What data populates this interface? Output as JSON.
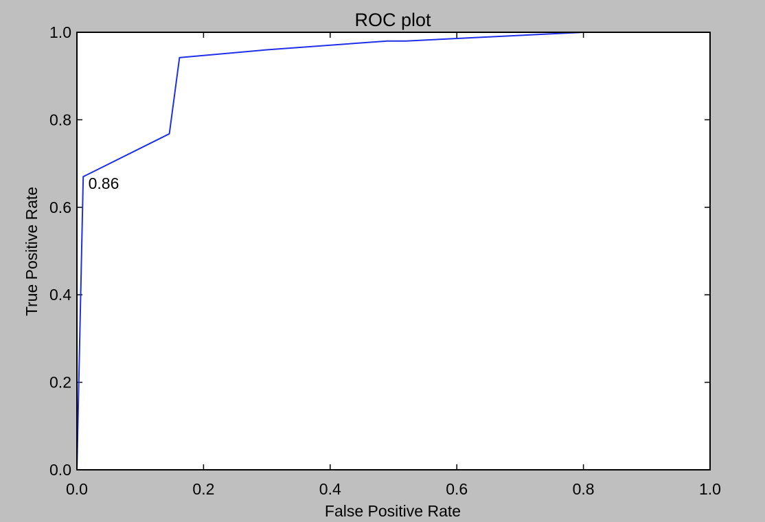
{
  "chart_data": {
    "type": "line",
    "title": "ROC plot",
    "xlabel": "False Positive Rate",
    "ylabel": "True Positive Rate",
    "xlim": [
      0.0,
      1.0
    ],
    "ylim": [
      0.0,
      1.0
    ],
    "xticks": [
      "0.0",
      "0.2",
      "0.4",
      "0.6",
      "0.8",
      "1.0"
    ],
    "yticks": [
      "0.0",
      "0.2",
      "0.4",
      "0.6",
      "0.8",
      "1.0"
    ],
    "grid": false,
    "series": [
      {
        "color": "#1f2ee8",
        "x": [
          0.0,
          0.01,
          0.146,
          0.162,
          0.3,
          0.49,
          0.52,
          0.8,
          1.0
        ],
        "y": [
          0.0,
          0.67,
          0.768,
          0.942,
          0.96,
          0.98,
          0.98,
          1.0,
          1.0
        ]
      }
    ],
    "annotations": [
      {
        "text": "0.86",
        "x": 0.018,
        "y": 0.655
      }
    ]
  }
}
